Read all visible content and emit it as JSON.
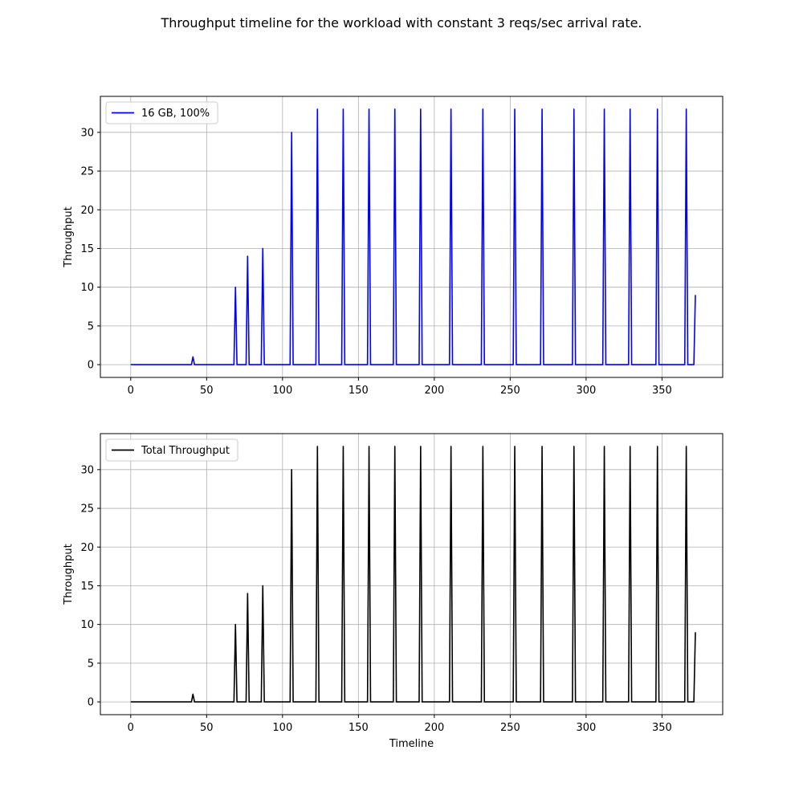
{
  "figure": {
    "title": "Throughput timeline for the workload with constant 3 reqs/sec arrival rate."
  },
  "chart_data": [
    {
      "type": "line",
      "xlabel": "",
      "ylabel": "Throughput",
      "xlim": [
        -20,
        390
      ],
      "ylim": [
        -1.65,
        34.65
      ],
      "xticks": [
        0,
        50,
        100,
        150,
        200,
        250,
        300,
        350
      ],
      "yticks": [
        0,
        5,
        10,
        15,
        20,
        25,
        30
      ],
      "grid": true,
      "legend_position": "upper-left",
      "series": [
        {
          "name": "16 GB, 100%",
          "color": "#0000ff",
          "x": [
            0,
            40,
            41,
            42,
            68,
            69,
            70,
            76,
            77,
            78,
            86,
            87,
            88,
            105,
            106,
            107,
            122,
            123,
            124,
            139,
            140,
            141,
            156,
            157,
            158,
            173,
            174,
            175,
            190,
            191,
            192,
            210,
            211,
            212,
            231,
            232,
            233,
            252,
            253,
            254,
            270,
            271,
            272,
            291,
            292,
            293,
            311,
            312,
            313,
            328,
            329,
            330,
            346,
            347,
            348,
            365,
            366,
            367,
            371,
            372
          ],
          "y": [
            0,
            0,
            1,
            0,
            0,
            10,
            0,
            0,
            14,
            0,
            0,
            15,
            0,
            0,
            30,
            0,
            0,
            33,
            0,
            0,
            33,
            0,
            0,
            33,
            0,
            0,
            33,
            0,
            0,
            33,
            0,
            0,
            33,
            0,
            0,
            33,
            0,
            0,
            33,
            0,
            0,
            33,
            0,
            0,
            33,
            0,
            0,
            33,
            0,
            0,
            33,
            0,
            0,
            33,
            0,
            0,
            33,
            0,
            0,
            9
          ]
        }
      ]
    },
    {
      "type": "line",
      "xlabel": "Timeline",
      "ylabel": "Throughput",
      "xlim": [
        -20,
        390
      ],
      "ylim": [
        -1.65,
        34.65
      ],
      "xticks": [
        0,
        50,
        100,
        150,
        200,
        250,
        300,
        350
      ],
      "yticks": [
        0,
        5,
        10,
        15,
        20,
        25,
        30
      ],
      "grid": true,
      "legend_position": "upper-left",
      "series": [
        {
          "name": "Total Throughput",
          "color": "#000000",
          "x": [
            0,
            40,
            41,
            42,
            68,
            69,
            70,
            76,
            77,
            78,
            86,
            87,
            88,
            105,
            106,
            107,
            122,
            123,
            124,
            139,
            140,
            141,
            156,
            157,
            158,
            173,
            174,
            175,
            190,
            191,
            192,
            210,
            211,
            212,
            231,
            232,
            233,
            252,
            253,
            254,
            270,
            271,
            272,
            291,
            292,
            293,
            311,
            312,
            313,
            328,
            329,
            330,
            346,
            347,
            348,
            365,
            366,
            367,
            371,
            372
          ],
          "y": [
            0,
            0,
            1,
            0,
            0,
            10,
            0,
            0,
            14,
            0,
            0,
            15,
            0,
            0,
            30,
            0,
            0,
            33,
            0,
            0,
            33,
            0,
            0,
            33,
            0,
            0,
            33,
            0,
            0,
            33,
            0,
            0,
            33,
            0,
            0,
            33,
            0,
            0,
            33,
            0,
            0,
            33,
            0,
            0,
            33,
            0,
            0,
            33,
            0,
            0,
            33,
            0,
            0,
            33,
            0,
            0,
            33,
            0,
            0,
            9
          ]
        }
      ]
    }
  ]
}
